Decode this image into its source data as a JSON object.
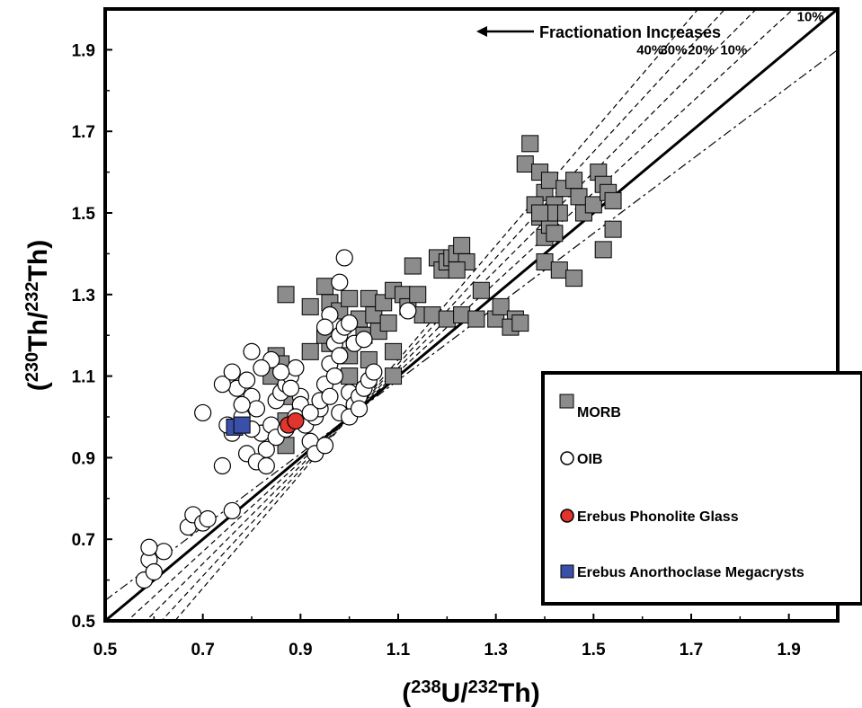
{
  "chart_data": {
    "type": "scatter",
    "xlabel_prefix": "(",
    "xlabel_iso1": "238",
    "xlabel_el1": "U/",
    "xlabel_iso2": "232",
    "xlabel_el2": "Th)",
    "ylabel_prefix": "(",
    "ylabel_iso1": "230",
    "ylabel_el1": "Th/",
    "ylabel_iso2": "232",
    "ylabel_el2": "Th)",
    "xlim": [
      0.5,
      2.0
    ],
    "ylim": [
      0.5,
      2.0
    ],
    "x_ticks": [
      "0.5",
      "0.7",
      "0.9",
      "1.1",
      "1.3",
      "1.5",
      "1.7",
      "1.9"
    ],
    "y_ticks": [
      "0.5",
      "0.7",
      "0.9",
      "1.1",
      "1.3",
      "1.5",
      "1.7",
      "1.9"
    ],
    "annotation": "Fractionation Increases",
    "equiline": {
      "slope": 1.0
    },
    "fractionation_lines": [
      {
        "label": "40%",
        "slope": 1.4
      },
      {
        "label": "30%",
        "slope": 1.3
      },
      {
        "label": "20%",
        "slope": 1.2
      },
      {
        "label": "10%",
        "slope": 1.1
      },
      {
        "label": "10%",
        "slope": 0.9
      }
    ],
    "legend_position": "lower-right",
    "series": [
      {
        "name": "MORB",
        "marker": "square",
        "color": "#8c8c8c",
        "points": [
          [
            0.87,
            1.3
          ],
          [
            0.92,
            1.27
          ],
          [
            0.95,
            1.32
          ],
          [
            0.96,
            1.28
          ],
          [
            0.98,
            1.26
          ],
          [
            1.0,
            1.29
          ],
          [
            1.02,
            1.24
          ],
          [
            1.03,
            1.2
          ],
          [
            1.04,
            1.29
          ],
          [
            1.05,
            1.25
          ],
          [
            1.06,
            1.21
          ],
          [
            1.07,
            1.28
          ],
          [
            1.08,
            1.23
          ],
          [
            1.09,
            1.31
          ],
          [
            1.11,
            1.3
          ],
          [
            1.12,
            1.27
          ],
          [
            1.13,
            1.37
          ],
          [
            1.14,
            1.3
          ],
          [
            1.15,
            1.25
          ],
          [
            1.17,
            1.25
          ],
          [
            1.18,
            1.39
          ],
          [
            1.19,
            1.36
          ],
          [
            1.2,
            1.38
          ],
          [
            1.2,
            1.24
          ],
          [
            1.21,
            1.39
          ],
          [
            1.22,
            1.4
          ],
          [
            1.23,
            1.42
          ],
          [
            1.24,
            1.38
          ],
          [
            1.22,
            1.36
          ],
          [
            1.23,
            1.25
          ],
          [
            1.26,
            1.24
          ],
          [
            1.27,
            1.31
          ],
          [
            1.3,
            1.24
          ],
          [
            1.31,
            1.27
          ],
          [
            1.34,
            1.24
          ],
          [
            1.33,
            1.22
          ],
          [
            1.35,
            1.23
          ],
          [
            1.0,
            1.15
          ],
          [
            1.04,
            1.14
          ],
          [
            1.0,
            1.1
          ],
          [
            1.09,
            1.16
          ],
          [
            1.09,
            1.1
          ],
          [
            0.96,
            1.18
          ],
          [
            0.92,
            1.16
          ],
          [
            0.85,
            1.15
          ],
          [
            0.86,
            1.13
          ],
          [
            0.84,
            1.1
          ],
          [
            0.88,
            1.05
          ],
          [
            0.9,
            1.01
          ],
          [
            0.87,
            0.93
          ],
          [
            0.87,
            0.99
          ],
          [
            0.95,
            1.2
          ],
          [
            1.37,
            1.67
          ],
          [
            1.36,
            1.62
          ],
          [
            1.39,
            1.6
          ],
          [
            1.4,
            1.55
          ],
          [
            1.41,
            1.58
          ],
          [
            1.42,
            1.52
          ],
          [
            1.43,
            1.5
          ],
          [
            1.44,
            1.56
          ],
          [
            1.46,
            1.58
          ],
          [
            1.47,
            1.54
          ],
          [
            1.48,
            1.5
          ],
          [
            1.5,
            1.52
          ],
          [
            1.51,
            1.6
          ],
          [
            1.52,
            1.57
          ],
          [
            1.53,
            1.55
          ],
          [
            1.54,
            1.53
          ],
          [
            1.38,
            1.52
          ],
          [
            1.39,
            1.49
          ],
          [
            1.4,
            1.44
          ],
          [
            1.41,
            1.47
          ],
          [
            1.42,
            1.45
          ],
          [
            1.4,
            1.38
          ],
          [
            1.43,
            1.36
          ],
          [
            1.46,
            1.34
          ],
          [
            1.54,
            1.46
          ],
          [
            1.52,
            1.41
          ],
          [
            1.41,
            1.5
          ],
          [
            1.39,
            1.5
          ]
        ]
      },
      {
        "name": "OIB",
        "marker": "circle",
        "color": "#ffffff",
        "points": [
          [
            0.58,
            0.6
          ],
          [
            0.59,
            0.65
          ],
          [
            0.6,
            0.62
          ],
          [
            0.62,
            0.67
          ],
          [
            0.59,
            0.68
          ],
          [
            0.67,
            0.73
          ],
          [
            0.68,
            0.76
          ],
          [
            0.7,
            0.74
          ],
          [
            0.71,
            0.75
          ],
          [
            0.76,
            0.77
          ],
          [
            0.7,
            1.01
          ],
          [
            0.74,
            0.88
          ],
          [
            0.76,
            0.96
          ],
          [
            0.78,
            1.0
          ],
          [
            0.77,
            1.07
          ],
          [
            0.79,
            1.09
          ],
          [
            0.8,
            1.05
          ],
          [
            0.81,
            1.02
          ],
          [
            0.82,
            0.96
          ],
          [
            0.83,
            0.92
          ],
          [
            0.84,
            0.98
          ],
          [
            0.85,
            1.04
          ],
          [
            0.86,
            1.06
          ],
          [
            0.87,
            1.08
          ],
          [
            0.88,
            1.1
          ],
          [
            0.89,
            1.12
          ],
          [
            0.9,
            1.05
          ],
          [
            0.91,
            0.98
          ],
          [
            0.92,
            0.94
          ],
          [
            0.93,
            1.0
          ],
          [
            0.94,
            1.02
          ],
          [
            0.95,
            1.08
          ],
          [
            0.96,
            1.13
          ],
          [
            0.97,
            1.18
          ],
          [
            0.98,
            1.2
          ],
          [
            0.99,
            1.22
          ],
          [
            1.0,
            1.06
          ],
          [
            1.01,
            1.03
          ],
          [
            1.02,
            1.05
          ],
          [
            1.03,
            1.07
          ],
          [
            1.04,
            1.09
          ],
          [
            1.05,
            1.11
          ],
          [
            0.99,
            1.39
          ],
          [
            0.98,
            1.33
          ],
          [
            1.12,
            1.26
          ],
          [
            0.96,
            1.25
          ],
          [
            0.95,
            1.22
          ],
          [
            0.97,
            1.1
          ],
          [
            0.98,
            1.15
          ],
          [
            0.93,
            0.91
          ],
          [
            0.95,
            0.93
          ],
          [
            0.9,
            1.03
          ],
          [
            0.88,
            1.07
          ],
          [
            0.86,
            1.11
          ],
          [
            0.84,
            1.14
          ],
          [
            0.82,
            1.12
          ],
          [
            0.8,
            1.16
          ],
          [
            0.79,
            0.91
          ],
          [
            0.81,
            0.89
          ],
          [
            0.83,
            0.88
          ],
          [
            0.85,
            0.95
          ],
          [
            0.87,
            0.97
          ],
          [
            0.89,
            1.0
          ],
          [
            0.92,
            1.01
          ],
          [
            0.94,
            1.04
          ],
          [
            0.96,
            1.05
          ],
          [
            0.98,
            1.01
          ],
          [
            1.0,
            1.0
          ],
          [
            1.02,
            1.02
          ],
          [
            0.78,
            1.03
          ],
          [
            0.8,
            0.97
          ],
          [
            0.75,
            0.98
          ],
          [
            0.74,
            1.08
          ],
          [
            0.76,
            1.11
          ],
          [
            1.01,
            1.18
          ],
          [
            1.03,
            1.19
          ],
          [
            1.0,
            1.23
          ]
        ]
      },
      {
        "name": "Erebus Phonolite Glass",
        "marker": "circle",
        "color": "#e0342c",
        "points": [
          [
            0.875,
            0.98
          ],
          [
            0.89,
            0.99
          ]
        ]
      },
      {
        "name": "Erebus Anorthoclase Megacrysts",
        "marker": "square",
        "color": "#3a4fa8",
        "points": [
          [
            0.765,
            0.975
          ],
          [
            0.78,
            0.98
          ]
        ]
      }
    ]
  }
}
